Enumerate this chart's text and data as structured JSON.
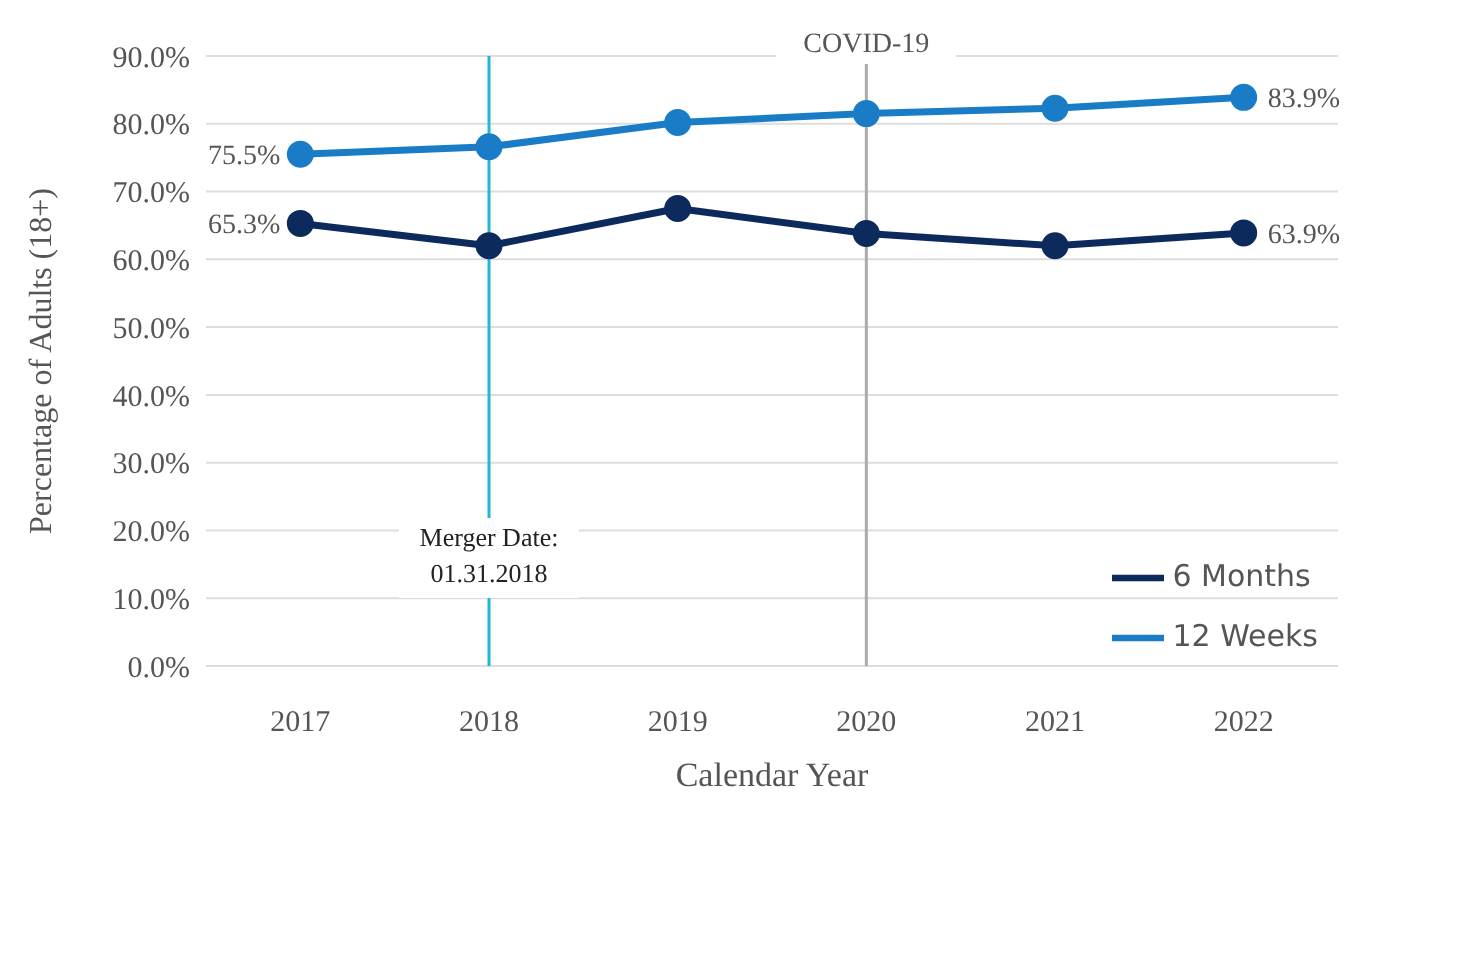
{
  "chart_data": {
    "type": "line",
    "xlabel": "Calendar Year",
    "ylabel": "Percentage of Adults (18+)",
    "categories": [
      "2017",
      "2018",
      "2019",
      "2020",
      "2021",
      "2022"
    ],
    "series": [
      {
        "name": "6 Months",
        "color": "#0d2a5c",
        "values": [
          65.3,
          62.0,
          67.5,
          63.8,
          62.0,
          63.9
        ],
        "value_labels": [
          "65.3%",
          null,
          null,
          null,
          null,
          "63.9%"
        ]
      },
      {
        "name": "12 Weeks",
        "color": "#1a7cc7",
        "values": [
          75.5,
          76.6,
          80.2,
          81.5,
          82.3,
          83.9
        ],
        "value_labels": [
          "75.5%",
          null,
          null,
          null,
          null,
          "83.9%"
        ]
      }
    ],
    "ylim": [
      0,
      90
    ],
    "yticks": [
      {
        "value": 0,
        "label": "0.0%"
      },
      {
        "value": 10,
        "label": "10.0%"
      },
      {
        "value": 20,
        "label": "20.0%"
      },
      {
        "value": 30,
        "label": "30.0%"
      },
      {
        "value": 40,
        "label": "40.0%"
      },
      {
        "value": 50,
        "label": "50.0%"
      },
      {
        "value": 60,
        "label": "60.0%"
      },
      {
        "value": 70,
        "label": "70.0%"
      },
      {
        "value": 80,
        "label": "80.0%"
      },
      {
        "value": 90,
        "label": "90.0%"
      }
    ],
    "ref_lines": [
      {
        "axis": "x",
        "value": "2018",
        "label": "Merger Date:\n01.31.2018",
        "color": "#20b8d8"
      },
      {
        "axis": "x",
        "value": "2020",
        "label": "COVID-19",
        "color": "#aaaaaa"
      }
    ],
    "grid": "y",
    "legend": "bottom right",
    "marker": "circle",
    "line_style": "solid"
  }
}
